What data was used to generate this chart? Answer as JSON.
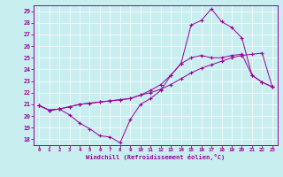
{
  "xlabel": "Windchill (Refroidissement éolien,°C)",
  "ylabel": "",
  "background_color": "#c8eef0",
  "line_color": "#990099",
  "xlim": [
    -0.5,
    23.5
  ],
  "ylim": [
    17.5,
    29.5
  ],
  "xticks": [
    0,
    1,
    2,
    3,
    4,
    5,
    6,
    7,
    8,
    9,
    10,
    11,
    12,
    13,
    14,
    15,
    16,
    17,
    18,
    19,
    20,
    21,
    22,
    23
  ],
  "yticks": [
    18,
    19,
    20,
    21,
    22,
    23,
    24,
    25,
    26,
    27,
    28,
    29
  ],
  "line1_x": [
    0,
    1,
    2,
    3,
    4,
    5,
    6,
    7,
    8,
    9,
    10,
    11,
    12,
    13,
    14,
    15,
    16,
    17,
    18,
    19,
    20,
    21,
    22,
    23
  ],
  "line1_y": [
    20.9,
    20.5,
    20.6,
    20.1,
    19.4,
    18.9,
    18.3,
    18.2,
    17.7,
    19.7,
    21.0,
    21.5,
    22.2,
    23.5,
    24.5,
    25.0,
    25.2,
    25.0,
    25.0,
    25.2,
    25.3,
    23.5,
    22.9,
    22.5
  ],
  "line2_x": [
    0,
    1,
    2,
    3,
    4,
    5,
    6,
    7,
    8,
    9,
    10,
    11,
    12,
    13,
    14,
    15,
    16,
    17,
    18,
    19,
    20,
    21,
    22,
    23
  ],
  "line2_y": [
    20.9,
    20.5,
    20.6,
    20.8,
    21.0,
    21.1,
    21.2,
    21.3,
    21.4,
    21.5,
    21.8,
    22.0,
    22.3,
    22.7,
    23.2,
    23.7,
    24.1,
    24.4,
    24.7,
    25.0,
    25.2,
    25.3,
    25.4,
    22.5
  ],
  "line3_x": [
    0,
    1,
    2,
    3,
    4,
    5,
    6,
    7,
    8,
    9,
    10,
    11,
    12,
    13,
    14,
    15,
    16,
    17,
    18,
    19,
    20,
    21,
    22,
    23
  ],
  "line3_y": [
    20.9,
    20.5,
    20.6,
    20.8,
    21.0,
    21.1,
    21.2,
    21.3,
    21.4,
    21.5,
    21.8,
    22.2,
    22.7,
    23.5,
    24.5,
    27.8,
    28.2,
    29.2,
    28.1,
    27.6,
    26.7,
    23.5,
    22.9,
    22.5
  ]
}
